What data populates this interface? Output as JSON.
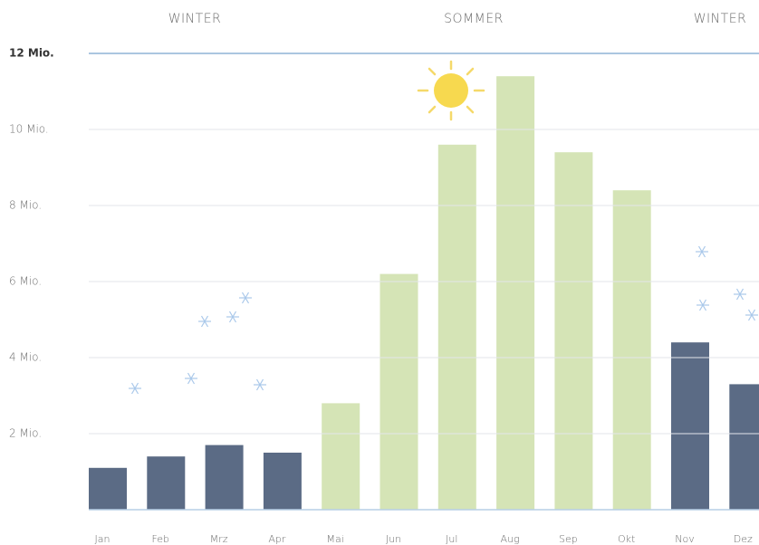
{
  "chart_data": {
    "type": "bar",
    "annotations": [
      "WINTER",
      "SOMMER",
      "WINTER"
    ],
    "categories": [
      "Jan",
      "Feb",
      "Mrz",
      "Apr",
      "Mai",
      "Jun",
      "Jul",
      "Aug",
      "Sep",
      "Okt",
      "Nov",
      "Dez"
    ],
    "values": [
      1.1,
      1.4,
      1.7,
      1.5,
      2.8,
      6.2,
      9.6,
      11.4,
      9.4,
      8.4,
      4.4,
      3.3
    ],
    "colors": [
      "#5b6b85",
      "#5b6b85",
      "#5b6b85",
      "#5b6b85",
      "#d5e4b6",
      "#d5e4b6",
      "#d5e4b6",
      "#d5e4b6",
      "#d5e4b6",
      "#d5e4b6",
      "#5b6b85",
      "#5b6b85"
    ],
    "ylim": [
      0,
      12
    ],
    "yticks": [
      {
        "value": 2,
        "label": "2 Mio."
      },
      {
        "value": 4,
        "label": "4 Mio."
      },
      {
        "value": 6,
        "label": "6 Mio."
      },
      {
        "value": 8,
        "label": "8 Mio."
      },
      {
        "value": 10,
        "label": "10 Mio."
      },
      {
        "value": 12,
        "label": "12 Mio."
      }
    ],
    "grid": true
  }
}
